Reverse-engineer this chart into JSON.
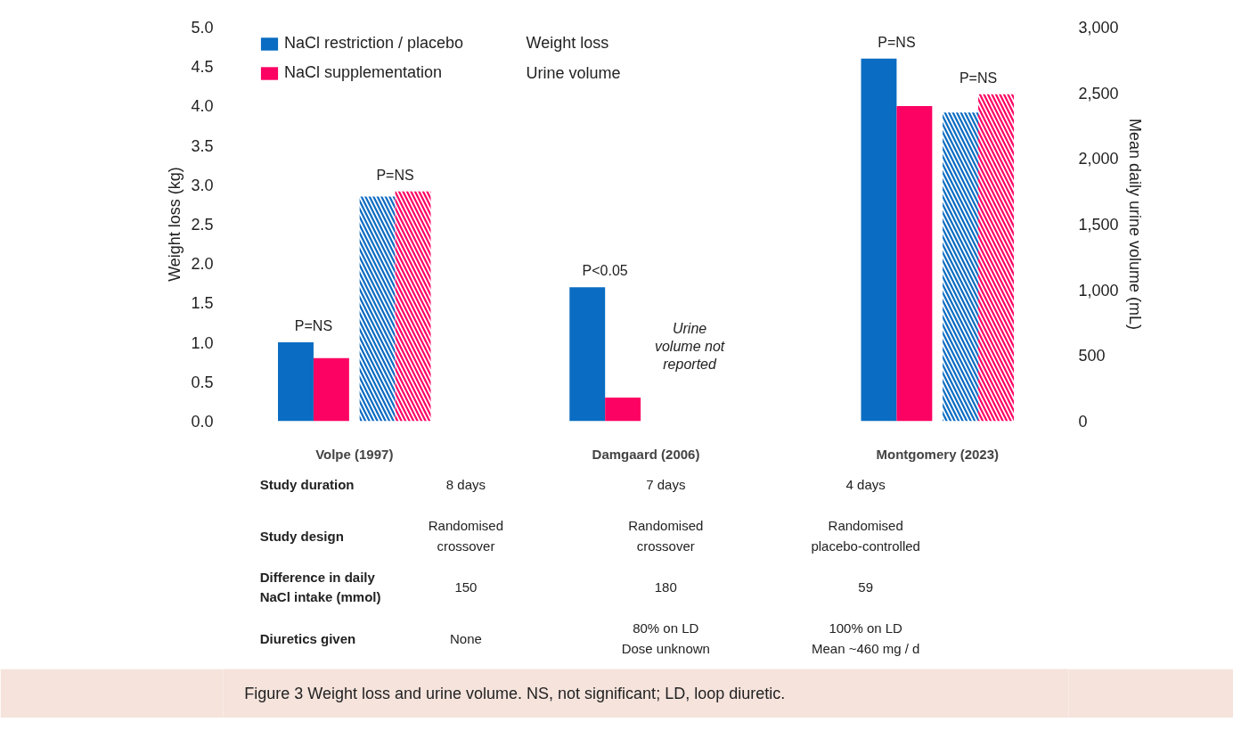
{
  "chart_data": {
    "type": "bar",
    "categories": [
      "Volpe (1997)",
      "Damgaard (2006)",
      "Montgomery (2023)"
    ],
    "ylabel": "Weight loss (kg)",
    "y2label": "Mean daily urine volume (mL)",
    "ylim": [
      0,
      5
    ],
    "yticks": [
      {
        "value": 0,
        "label": "0.0"
      },
      0.5,
      {
        "value": 1,
        "label": "1.0"
      },
      1.5,
      {
        "value": 2,
        "label": "2.0"
      },
      2.5,
      {
        "value": 3,
        "label": "3.0"
      },
      3.5,
      {
        "value": 4,
        "label": "4.0"
      },
      4.5,
      {
        "value": 5,
        "label": "5.0"
      }
    ],
    "y2lim": [
      0,
      3000
    ],
    "y2ticks": [
      0,
      500,
      {
        "value": 1000,
        "label": "1,000"
      },
      {
        "value": 1500,
        "label": "1,500"
      },
      {
        "value": 2000,
        "label": "2,000"
      },
      {
        "value": 2500,
        "label": "2,500"
      },
      {
        "value": 3000,
        "label": "3,000"
      }
    ],
    "series": [
      {
        "name": "NaCl restriction / placebo",
        "color": "#0a6cc2",
        "values": [
          1.0,
          1.7,
          4.6
        ],
        "value_labels": [
          "P=NS",
          "P<0.05",
          "P=NS"
        ]
      },
      {
        "name": "NaCl supplementation",
        "color": "#fc0263",
        "values": [
          0.8,
          0.3,
          4.0
        ]
      },
      {
        "color": "#0a6cc2",
        "axis": "y2",
        "values": [
          1710,
          null,
          2350
        ]
      },
      {
        "color": "#fc0263",
        "axis": "y2",
        "values": [
          1750,
          null,
          2490
        ],
        "value_labels": [
          "P=NS",
          null,
          "P=NS"
        ]
      }
    ],
    "legend": "top left",
    "annotations": [
      "Weight loss",
      "Urine volume",
      "Urine\nvolume not\nreported",
      "Study duration",
      "8 days",
      "7 days",
      "4 days",
      "Study design",
      "Randomised\ncrossover",
      "Randomised\ncrossover",
      "Randomised\nplacebo-controlled",
      "Difference in daily\nNaCl intake (mmol)",
      "150",
      "180",
      "59",
      "Diuretics given",
      "None",
      "80% on LD\nDose unknown",
      "100% on LD\nMean ~460 mg / d",
      "Figure 3  Weight loss and urine volume. NS, not significant; LD, loop diuretic."
    ]
  }
}
